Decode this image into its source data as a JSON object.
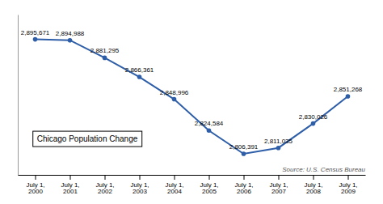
{
  "chart_data": {
    "type": "line",
    "categories": [
      "July 1,\n2000",
      "July 1,\n2001",
      "July 1,\n2002",
      "July 1,\n2003",
      "July 1,\n2004",
      "July 1,\n2005",
      "July 1,\n2006",
      "July 1,\n2007",
      "July 1,\n2008",
      "July 1,\n2009"
    ],
    "values": [
      2895671,
      2894988,
      2881295,
      2866361,
      2848996,
      2824584,
      2806391,
      2811035,
      2830026,
      2851268
    ],
    "value_labels": [
      "2,895,671",
      "2,894,988",
      "2,881,295",
      "2,866,361",
      "2,848,996",
      "2,824,584",
      "2,806,391",
      "2,811,035",
      "2,830,026",
      "2,851,268"
    ],
    "color": "#2E5EA8",
    "marker": "circle",
    "ylim": [
      2790000,
      2915000
    ],
    "data_labels": true,
    "tick_labels": "x",
    "grid": false,
    "annotations": [
      "Chicago Population Change",
      "Source: U.S. Census Bureau"
    ]
  }
}
